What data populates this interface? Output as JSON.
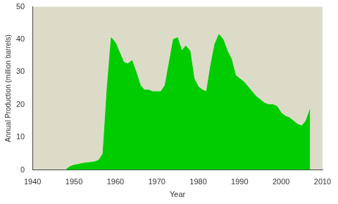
{
  "chart_data": {
    "type": "area",
    "x_label": "Year",
    "y_label": "Annual Production (million barrels)",
    "x": [
      1948,
      1949,
      1950,
      1951,
      1952,
      1953,
      1954,
      1955,
      1956,
      1957,
      1958,
      1959,
      1960,
      1961,
      1962,
      1963,
      1964,
      1965,
      1966,
      1967,
      1968,
      1969,
      1970,
      1971,
      1972,
      1973,
      1974,
      1975,
      1976,
      1977,
      1978,
      1979,
      1980,
      1981,
      1982,
      1983,
      1984,
      1985,
      1986,
      1987,
      1988,
      1989,
      1990,
      1991,
      1992,
      1993,
      1994,
      1995,
      1996,
      1997,
      1998,
      1999,
      2000,
      2001,
      2002,
      2003,
      2004,
      2005,
      2006,
      2007
    ],
    "values": [
      0,
      1,
      1.5,
      1.7,
      2,
      2.2,
      2.3,
      2.5,
      3,
      5,
      25,
      40.5,
      39,
      36,
      33,
      32.5,
      33.5,
      30,
      26,
      24.5,
      24.5,
      24,
      24,
      24,
      26,
      33,
      40,
      40.5,
      36.5,
      38,
      36.5,
      28,
      25.5,
      24.5,
      24,
      32,
      38.5,
      41.5,
      40,
      36.5,
      34,
      29,
      28,
      27,
      25.5,
      24,
      22.5,
      21.5,
      20.5,
      20,
      20,
      19.5,
      17.5,
      16.5,
      16,
      15,
      14,
      13.5,
      15,
      18.5
    ],
    "color": "#00cc00",
    "xlim": [
      1940,
      2010
    ],
    "xticks": [
      1940,
      1950,
      1960,
      1970,
      1980,
      1990,
      2000,
      2010
    ],
    "ylim": [
      0,
      50
    ],
    "yticks": [
      0,
      10,
      20,
      30,
      40,
      50
    ],
    "grid": false
  }
}
